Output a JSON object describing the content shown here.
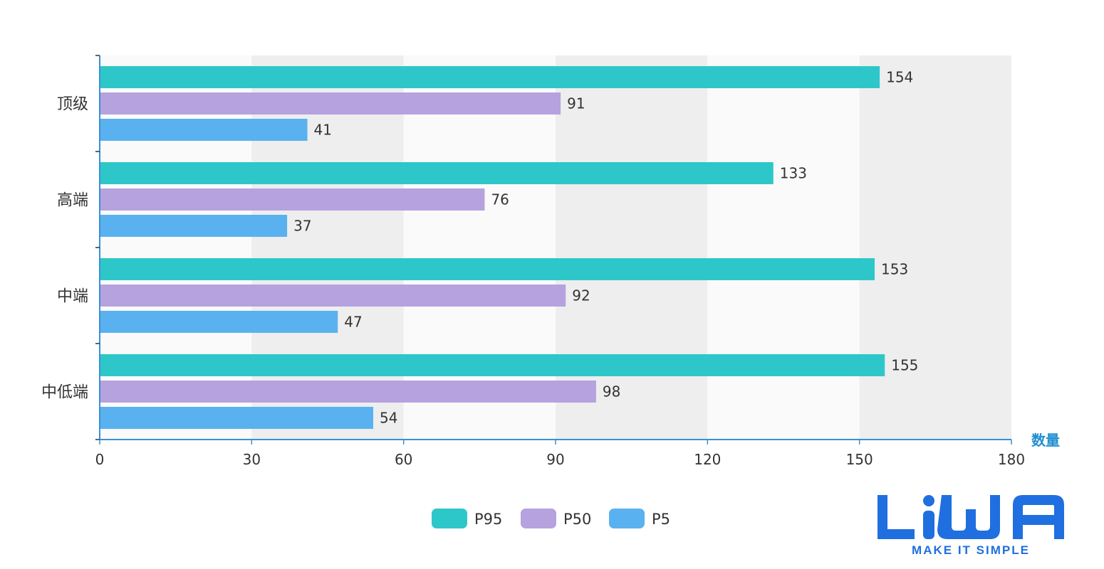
{
  "colors": {
    "band_light": "#fafafa",
    "band_dark": "#eeeeee",
    "axis": "#3b8fd6",
    "axis_name": "#1f8fd0",
    "text": "#333333",
    "logo": "#1f6fe0"
  },
  "logo": {
    "wordmark": "LiWA",
    "tagline": "MAKE IT SIMPLE"
  },
  "chart_data": {
    "type": "bar",
    "orientation": "horizontal",
    "categories": [
      "顶级",
      "高端",
      "中端",
      "中低端"
    ],
    "series": [
      {
        "name": "P95",
        "color": "#2ec7c9",
        "values": [
          154,
          133,
          153,
          155
        ]
      },
      {
        "name": "P50",
        "color": "#b6a2de",
        "values": [
          91,
          76,
          92,
          98
        ]
      },
      {
        "name": "P5",
        "color": "#5ab1ef",
        "values": [
          41,
          37,
          47,
          54
        ]
      }
    ],
    "xlabel": "数量",
    "ylabel": "",
    "xlim": [
      0,
      180
    ],
    "xticks": [
      0,
      30,
      60,
      90,
      120,
      150,
      180
    ],
    "grid": "alternating vertical bands",
    "legend_position": "bottom-center",
    "data_labels": true
  }
}
